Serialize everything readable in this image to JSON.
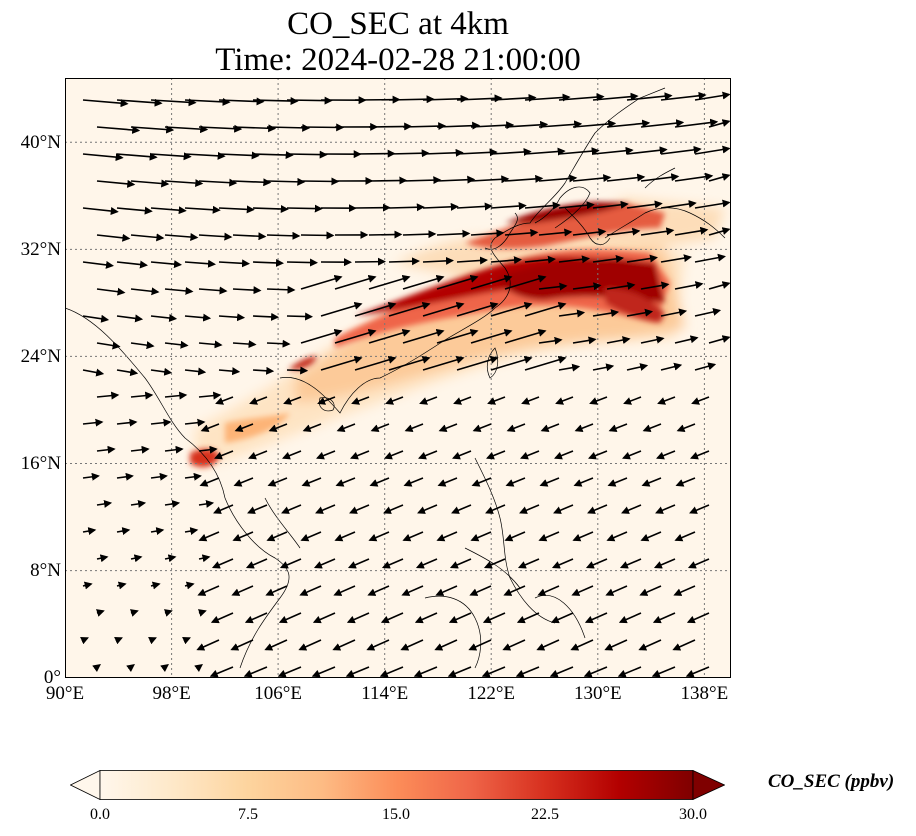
{
  "title": {
    "line1": "CO_SEC at 4km",
    "line2": "Time: 2024-02-28 21:00:00"
  },
  "map": {
    "projection": "PlateCarree",
    "lon_range": [
      90,
      140
    ],
    "lat_range": [
      0,
      45
    ],
    "gridlines": "dotted gray",
    "y_ticks": [
      "0°",
      "8°N",
      "16°N",
      "24°N",
      "32°N",
      "40°N"
    ],
    "x_ticks": [
      "90°E",
      "98°E",
      "106°E",
      "114°E",
      "122°E",
      "130°E",
      "138°E"
    ],
    "field": "CO_SEC",
    "overlay": "wind vectors (black arrows)",
    "plumes": [
      {
        "region": "southern China to south of Japan",
        "lon": [
          113,
          135
        ],
        "lat": [
          26,
          32
        ],
        "level": "high (>30 ppbv)"
      },
      {
        "region": "Korea to Japan",
        "lon": [
          122,
          136
        ],
        "lat": [
          32,
          36
        ],
        "level": "high"
      },
      {
        "region": "northern Thailand",
        "lon": [
          100,
          101
        ],
        "lat": [
          16,
          17
        ],
        "level": "high"
      }
    ]
  },
  "colorbar": {
    "label": "CO_SEC (ppbv)",
    "ticks": [
      "0.0",
      "7.5",
      "15.0",
      "22.5",
      "30.0"
    ],
    "min": 0,
    "max": 30,
    "colormap": "OrRd",
    "colors": [
      "#fff7ec",
      "#fee8c8",
      "#fdd49e",
      "#fdbb84",
      "#fc8d59",
      "#ef6548",
      "#d7301f",
      "#b30000",
      "#7f0000"
    ],
    "extend": "both"
  }
}
